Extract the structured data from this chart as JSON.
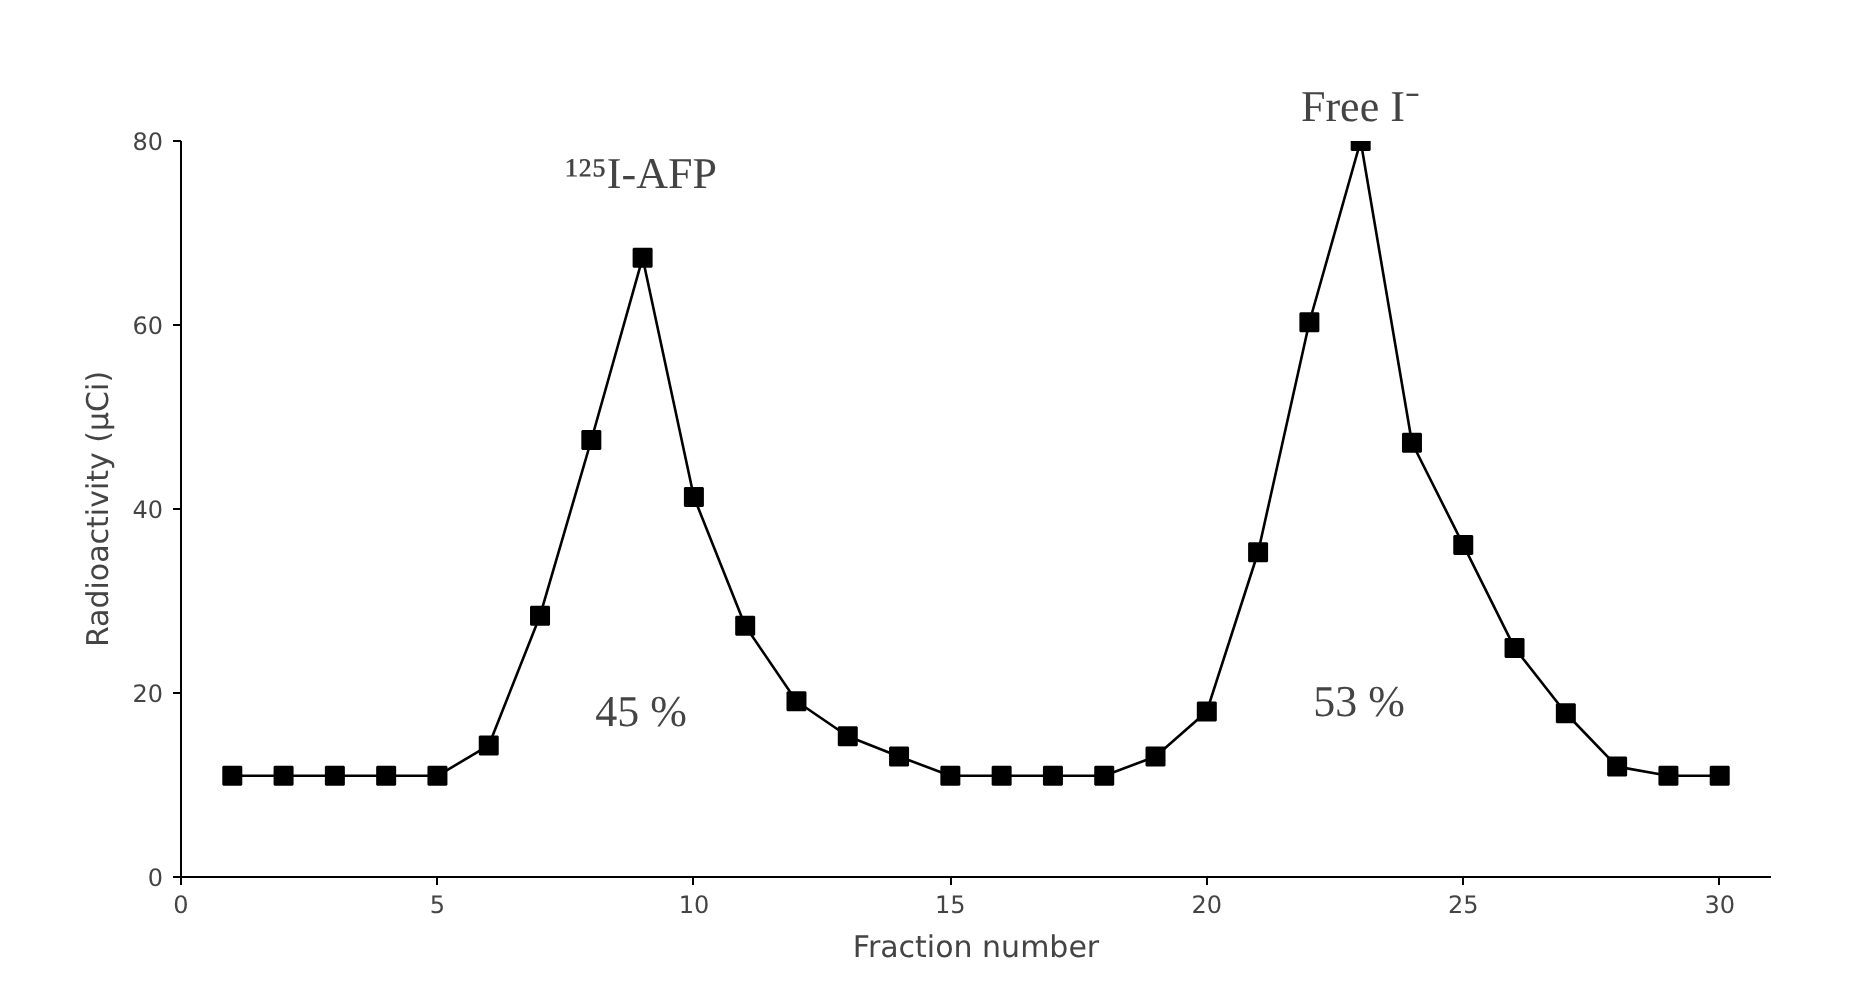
{
  "chart_data": {
    "type": "line",
    "xlabel": "Fraction number",
    "ylabel": "Radioactivity (μCi)",
    "x": [
      1,
      2,
      3,
      4,
      5,
      6,
      7,
      8,
      9,
      10,
      11,
      12,
      13,
      14,
      15,
      16,
      17,
      18,
      19,
      20,
      21,
      22,
      23,
      24,
      25,
      26,
      27,
      28,
      29,
      30
    ],
    "series": [
      {
        "color": "#000000",
        "values": [
          11,
          11,
          11,
          11,
          11,
          14.3,
          28.4,
          47.5,
          67.3,
          41.3,
          27.3,
          19.1,
          15.3,
          13.1,
          11,
          11,
          11,
          11,
          13.1,
          18,
          35.3,
          60.3,
          80,
          47.2,
          36.1,
          24.9,
          17.8,
          12,
          11,
          11
        ]
      }
    ],
    "xlim": [
      0,
      31
    ],
    "xticks": [
      0,
      5,
      10,
      15,
      20,
      25,
      30
    ],
    "ylim": [
      0,
      80
    ],
    "yticks": [
      0,
      20,
      40,
      60,
      80
    ],
    "grid": false,
    "marker": "square",
    "line_style": "solid",
    "annotations": [
      "¹²⁵I-AFP",
      "Free I⁻",
      "45 %",
      "53 %"
    ]
  }
}
